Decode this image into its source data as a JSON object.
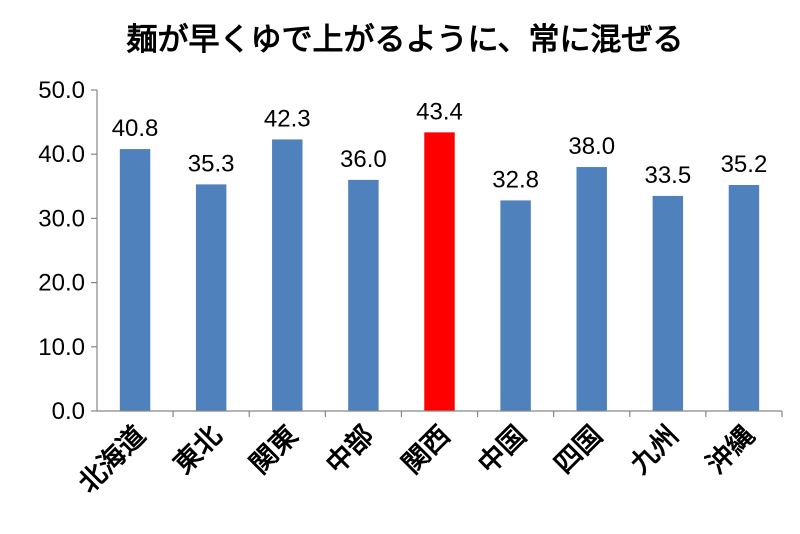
{
  "chart_data": {
    "type": "bar",
    "title": "麺が早くゆで上がるように、常に混ぜる",
    "categories": [
      "北海道",
      "東北",
      "関東",
      "中部",
      "関西",
      "中国",
      "四国",
      "九州",
      "沖縄"
    ],
    "values": [
      40.8,
      35.3,
      42.3,
      36.0,
      43.4,
      32.8,
      38.0,
      33.5,
      35.2
    ],
    "value_labels": [
      "40.8",
      "35.3",
      "42.3",
      "36.0",
      "43.4",
      "32.8",
      "38.0",
      "33.5",
      "35.2"
    ],
    "y_ticks": [
      "0.0",
      "10.0",
      "20.0",
      "30.0",
      "40.0",
      "50.0"
    ],
    "ylim": [
      0,
      50
    ],
    "grid": false,
    "legend": "none",
    "bar_color": "#4f81bd",
    "highlight_color": "#ff0000",
    "highlight_index": 4
  }
}
